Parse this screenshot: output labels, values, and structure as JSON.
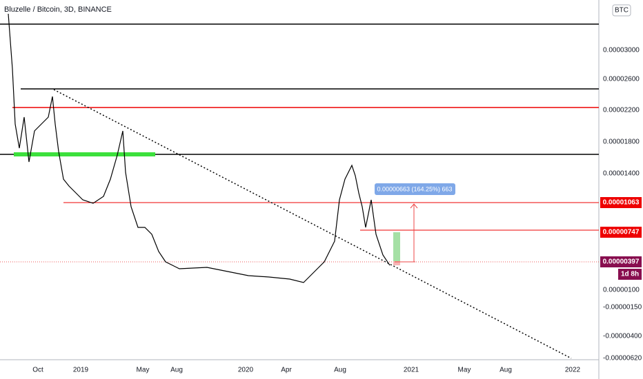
{
  "header": {
    "title": "Bluzelle / Bitcoin, 3D, BINANCE",
    "badge": "BTC"
  },
  "price_axis": {
    "labels": [
      "0.00003000",
      "0.00002600",
      "0.00002200",
      "0.00001800",
      "0.00001400",
      "0.00000100",
      "-0.00000150",
      "-0.00000400",
      "-0.00000620"
    ]
  },
  "price_tags": [
    {
      "label": "0.00001063"
    },
    {
      "label": "0.00000747"
    },
    {
      "label": "0.00000397"
    },
    {
      "label": "1d 8h"
    }
  ],
  "time_axis": {
    "labels": [
      "Oct",
      "2019",
      "May",
      "Aug",
      "2020",
      "Apr",
      "Aug",
      "2021",
      "May",
      "Aug",
      "2022"
    ]
  },
  "measure": {
    "label": "0.00000663 (164.25%) 663"
  }
}
